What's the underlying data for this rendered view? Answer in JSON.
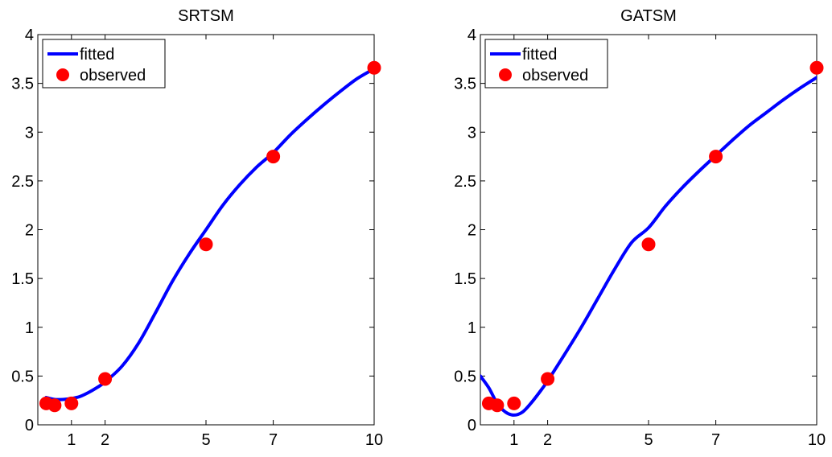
{
  "chart_data": [
    {
      "type": "line",
      "title": "SRTSM",
      "xlabel": "",
      "ylabel": "",
      "xlim": [
        0,
        10
      ],
      "ylim": [
        0,
        4
      ],
      "xticks": [
        1,
        2,
        5,
        7,
        10
      ],
      "yticks": [
        0,
        0.5,
        1,
        1.5,
        2,
        2.5,
        3,
        3.5,
        4
      ],
      "xtick_labels": [
        "1",
        "2",
        "5",
        "7",
        "10"
      ],
      "ytick_labels": [
        "0",
        "0.5",
        "1",
        "1.5",
        "2",
        "2.5",
        "3",
        "3.5",
        "4"
      ],
      "legend": {
        "position": "top-left",
        "entries": [
          "fitted",
          "observed"
        ]
      },
      "series": [
        {
          "name": "fitted",
          "style": "line",
          "color": "#0000ff",
          "x": [
            0.25,
            0.5,
            0.75,
            1,
            1.25,
            1.5,
            1.75,
            2,
            2.5,
            3,
            3.5,
            4,
            4.5,
            5,
            5.5,
            6,
            6.5,
            7,
            7.5,
            8,
            8.5,
            9,
            9.5,
            10
          ],
          "y": [
            0.28,
            0.26,
            0.26,
            0.27,
            0.29,
            0.33,
            0.38,
            0.44,
            0.6,
            0.84,
            1.15,
            1.47,
            1.75,
            2.0,
            2.25,
            2.46,
            2.64,
            2.79,
            2.97,
            3.13,
            3.28,
            3.42,
            3.55,
            3.65
          ]
        },
        {
          "name": "observed",
          "style": "scatter",
          "color": "#ff0000",
          "x": [
            0.25,
            0.5,
            1,
            2,
            5,
            7,
            10
          ],
          "y": [
            0.22,
            0.2,
            0.22,
            0.47,
            1.85,
            2.75,
            3.66
          ]
        }
      ]
    },
    {
      "type": "line",
      "title": "GATSM",
      "xlabel": "",
      "ylabel": "",
      "xlim": [
        0,
        10
      ],
      "ylim": [
        0,
        4
      ],
      "xticks": [
        1,
        2,
        5,
        7,
        10
      ],
      "yticks": [
        0,
        0.5,
        1,
        1.5,
        2,
        2.5,
        3,
        3.5,
        4
      ],
      "xtick_labels": [
        "1",
        "2",
        "5",
        "7",
        "10"
      ],
      "ytick_labels": [
        "0",
        "0.5",
        "1",
        "1.5",
        "2",
        "2.5",
        "3",
        "3.5",
        "4"
      ],
      "legend": {
        "position": "top-left",
        "entries": [
          "fitted",
          "observed"
        ]
      },
      "series": [
        {
          "name": "fitted",
          "style": "line",
          "color": "#0000ff",
          "x": [
            0,
            0.25,
            0.5,
            0.75,
            1,
            1.25,
            1.5,
            1.75,
            2,
            2.5,
            3,
            3.5,
            4,
            4.5,
            5,
            5.5,
            6,
            6.5,
            7,
            7.5,
            8,
            8.5,
            9,
            9.5,
            10
          ],
          "y": [
            0.5,
            0.38,
            0.22,
            0.13,
            0.1,
            0.13,
            0.22,
            0.33,
            0.45,
            0.72,
            1.0,
            1.3,
            1.6,
            1.87,
            2.02,
            2.24,
            2.43,
            2.6,
            2.76,
            2.92,
            3.07,
            3.2,
            3.33,
            3.45,
            3.56
          ]
        },
        {
          "name": "observed",
          "style": "scatter",
          "color": "#ff0000",
          "x": [
            0.25,
            0.5,
            1,
            2,
            5,
            7,
            10
          ],
          "y": [
            0.22,
            0.2,
            0.22,
            0.47,
            1.85,
            2.75,
            3.66
          ]
        }
      ]
    }
  ]
}
